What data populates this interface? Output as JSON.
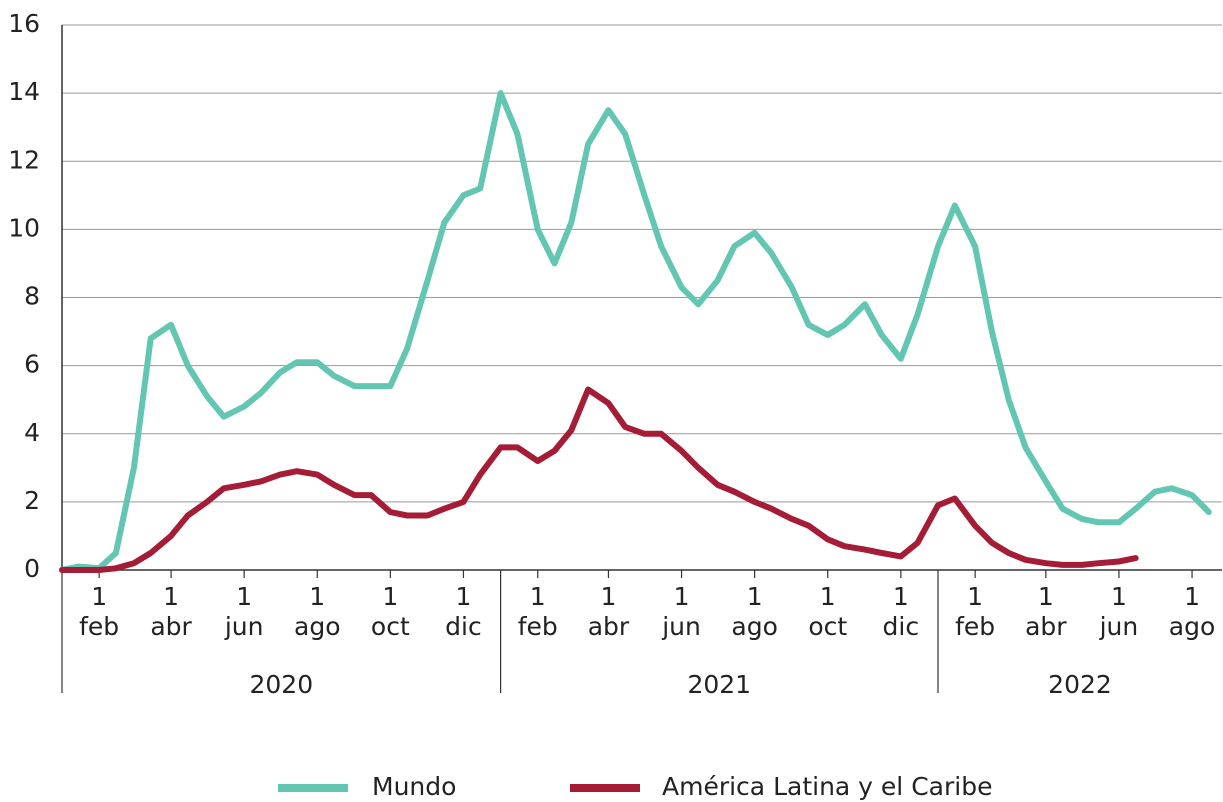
{
  "chart_data": {
    "type": "line",
    "x": [
      "2020-01-01",
      "2020-01-15",
      "2020-02-01",
      "2020-02-15",
      "2020-03-01",
      "2020-03-15",
      "2020-04-01",
      "2020-04-15",
      "2020-05-01",
      "2020-05-15",
      "2020-06-01",
      "2020-06-15",
      "2020-07-01",
      "2020-07-15",
      "2020-08-01",
      "2020-08-15",
      "2020-09-01",
      "2020-09-15",
      "2020-10-01",
      "2020-10-15",
      "2020-11-01",
      "2020-11-15",
      "2020-12-01",
      "2020-12-15",
      "2021-01-01",
      "2021-01-15",
      "2021-02-01",
      "2021-02-15",
      "2021-03-01",
      "2021-03-15",
      "2021-04-01",
      "2021-04-15",
      "2021-05-01",
      "2021-05-15",
      "2021-06-01",
      "2021-06-15",
      "2021-07-01",
      "2021-07-15",
      "2021-08-01",
      "2021-08-15",
      "2021-09-01",
      "2021-09-15",
      "2021-10-01",
      "2021-10-15",
      "2021-11-01",
      "2021-11-15",
      "2021-12-01",
      "2021-12-15",
      "2022-01-01",
      "2022-01-15",
      "2022-02-01",
      "2022-02-15",
      "2022-03-01",
      "2022-03-15",
      "2022-04-01",
      "2022-04-15",
      "2022-05-01",
      "2022-05-15",
      "2022-06-01",
      "2022-06-15",
      "2022-07-01",
      "2022-07-15",
      "2022-08-01",
      "2022-08-15"
    ],
    "series": [
      {
        "name": "Mundo",
        "color": "#62c6b2",
        "values": [
          0.0,
          0.1,
          0.05,
          0.5,
          3.0,
          6.8,
          7.2,
          6.0,
          5.1,
          4.5,
          4.8,
          5.2,
          5.8,
          6.1,
          6.1,
          5.7,
          5.4,
          5.4,
          5.4,
          6.5,
          8.5,
          10.2,
          11.0,
          11.2,
          14.0,
          12.8,
          10.0,
          9.0,
          10.2,
          12.5,
          13.5,
          12.8,
          11.0,
          9.5,
          8.3,
          7.8,
          8.5,
          9.5,
          9.9,
          9.3,
          8.3,
          7.2,
          6.9,
          7.2,
          7.8,
          6.9,
          6.2,
          7.5,
          9.5,
          10.7,
          9.5,
          7.0,
          5.0,
          3.6,
          2.6,
          1.8,
          1.5,
          1.4,
          1.4,
          1.8,
          2.3,
          2.4,
          2.2,
          1.7
        ]
      },
      {
        "name": "América Latina y el Caribe",
        "color": "#a51c36",
        "values": [
          0,
          0,
          0,
          0.05,
          0.2,
          0.5,
          1.0,
          1.6,
          2.0,
          2.4,
          2.5,
          2.6,
          2.8,
          2.9,
          2.8,
          2.5,
          2.2,
          2.2,
          1.7,
          1.6,
          1.6,
          1.8,
          2.0,
          2.8,
          3.6,
          3.6,
          3.2,
          3.5,
          4.1,
          5.3,
          4.9,
          4.2,
          4.0,
          4.0,
          3.5,
          3.0,
          2.5,
          2.3,
          2.0,
          1.8,
          1.5,
          1.3,
          0.9,
          0.7,
          0.6,
          0.5,
          0.4,
          0.8,
          1.9,
          2.1,
          1.3,
          0.8,
          0.5,
          0.3,
          0.2,
          0.15,
          0.15,
          0.2,
          0.25,
          0.35,
          null,
          null,
          null,
          null
        ]
      }
    ],
    "xlim": [
      "2020-01-01",
      "2022-08-26"
    ],
    "xticks": [
      {
        "value": "2020-02-01",
        "label": "1 feb"
      },
      {
        "value": "2020-04-01",
        "label": "1 abr"
      },
      {
        "value": "2020-06-01",
        "label": "1 jun"
      },
      {
        "value": "2020-08-01",
        "label": "1 ago"
      },
      {
        "value": "2020-10-01",
        "label": "1 oct"
      },
      {
        "value": "2020-12-01",
        "label": "1 dic"
      },
      {
        "value": "2021-02-01",
        "label": "1 feb"
      },
      {
        "value": "2021-04-01",
        "label": "1 abr"
      },
      {
        "value": "2021-06-01",
        "label": "1 jun"
      },
      {
        "value": "2021-08-01",
        "label": "1 ago"
      },
      {
        "value": "2021-10-01",
        "label": "1 oct"
      },
      {
        "value": "2021-12-01",
        "label": "1 dic"
      },
      {
        "value": "2022-02-01",
        "label": "1 feb"
      },
      {
        "value": "2022-04-01",
        "label": "1 abr"
      },
      {
        "value": "2022-06-01",
        "label": "1 jun"
      },
      {
        "value": "2022-08-01",
        "label": "1 ago"
      }
    ],
    "years": [
      {
        "value": "2020-01-01",
        "label": "2020"
      },
      {
        "value": "2021-01-01",
        "label": "2021"
      },
      {
        "value": "2022-01-01",
        "label": "2022"
      }
    ],
    "ylim": [
      0,
      16
    ],
    "yticks": [
      0,
      2,
      4,
      6,
      8,
      10,
      12,
      14,
      16
    ],
    "grid": true,
    "legend": "bottom"
  }
}
